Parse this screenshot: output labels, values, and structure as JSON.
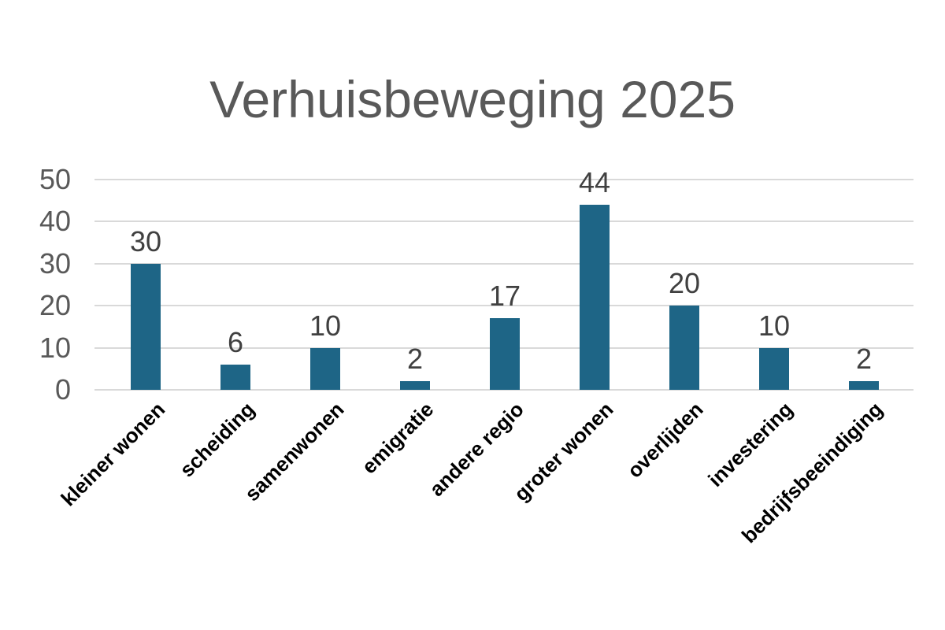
{
  "chart_data": {
    "type": "bar",
    "title": "Verhuisbeweging 2025",
    "categories": [
      "kleiner wonen",
      "scheiding",
      "samenwonen",
      "emigratie",
      "andere regio",
      "groter wonen",
      "overlijden",
      "investering",
      "bedrijfsbeeindiging"
    ],
    "values": [
      30,
      6,
      10,
      2,
      17,
      44,
      20,
      10,
      2
    ],
    "y_ticks": [
      0,
      10,
      20,
      30,
      40,
      50
    ],
    "ylim": [
      0,
      50
    ],
    "xlabel": "",
    "ylabel": "",
    "grid": true,
    "legend_position": "none",
    "data_labels_shown": true,
    "category_label_rotation_deg": 45,
    "colors": {
      "bar": "#1E6586",
      "title": "#595959",
      "y_tick_label": "#595959",
      "data_label": "#404040",
      "category_label": "#000000",
      "gridline": "#D9D9D9"
    }
  }
}
